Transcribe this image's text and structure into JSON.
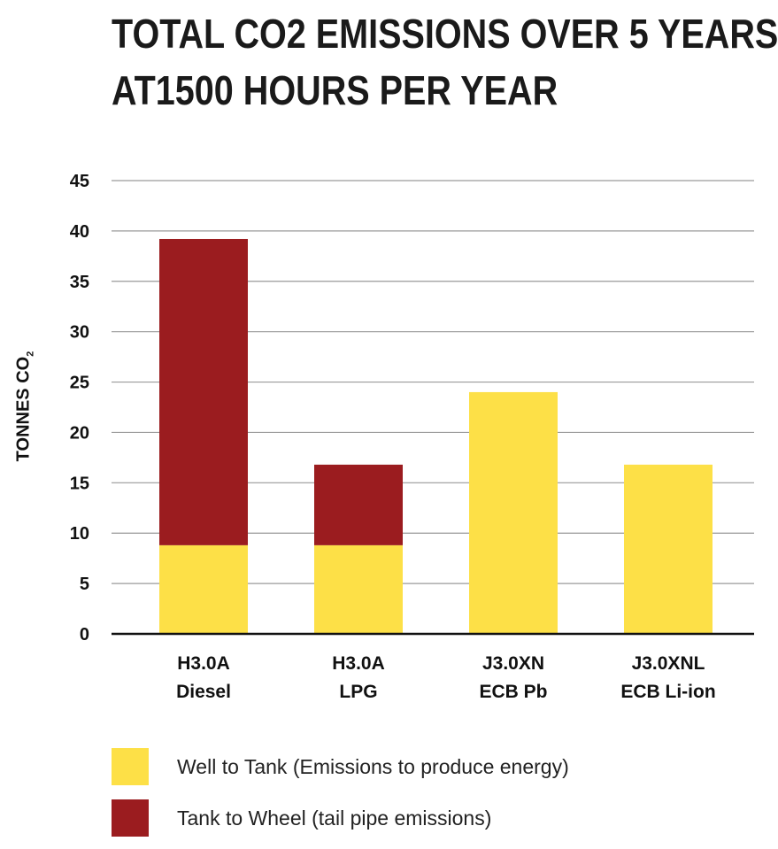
{
  "title": {
    "line1": "TOTAL CO2 EMISSIONS OVER 5 YEARS",
    "line2": "AT1500 HOURS PER YEAR"
  },
  "colors": {
    "well_to_tank": "#fde047",
    "tank_to_wheel": "#9b1c1f",
    "axis": "#111111",
    "grid": "#9a9a9a"
  },
  "chart_data": {
    "type": "bar",
    "stacked": true,
    "title": "TOTAL CO2 EMISSIONS OVER 5 YEARS AT1500 HOURS PER YEAR",
    "ylabel": "TONNES CO",
    "ylabel_subscript": "2",
    "xlabel": "",
    "ylim": [
      0,
      45
    ],
    "yticks": [
      0,
      5,
      10,
      15,
      20,
      25,
      30,
      35,
      40,
      45
    ],
    "grid": true,
    "legend_position": "bottom",
    "categories": [
      [
        "H3.0A",
        "Diesel"
      ],
      [
        "H3.0A",
        "LPG"
      ],
      [
        "J3.0XN",
        "ECB Pb"
      ],
      [
        "J3.0XNL",
        "ECB Li-ion"
      ]
    ],
    "series": [
      {
        "name": "Well to Tank (Emissions to produce energy)",
        "values": [
          8.8,
          8.8,
          24.0,
          16.8
        ]
      },
      {
        "name": "Tank to Wheel (tail pipe emissions)",
        "values": [
          30.4,
          8.0,
          0,
          0
        ]
      }
    ]
  }
}
